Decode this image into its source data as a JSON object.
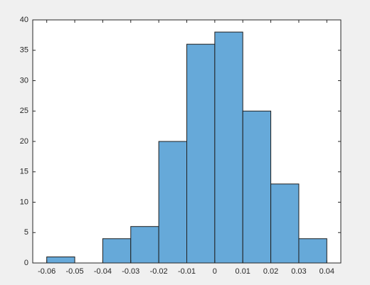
{
  "chart_data": {
    "type": "histogram",
    "bins": [
      -0.06,
      -0.05,
      -0.04,
      -0.03,
      -0.02,
      -0.01,
      0,
      0.01,
      0.02,
      0.03,
      0.04
    ],
    "values": [
      1,
      0,
      4,
      6,
      20,
      36,
      38,
      25,
      13,
      4
    ],
    "color": "#66a9d9",
    "edgecolor": "#1f1f1f",
    "xlim": [
      -0.065,
      0.045
    ],
    "xticks": [
      -0.06,
      -0.05,
      -0.04,
      -0.03,
      -0.02,
      -0.01,
      0,
      0.01,
      0.02,
      0.03,
      0.04
    ],
    "ylim": [
      0,
      40
    ],
    "yticks": [
      0,
      5,
      10,
      15,
      20,
      25,
      30,
      35,
      40
    ],
    "grid": false
  }
}
